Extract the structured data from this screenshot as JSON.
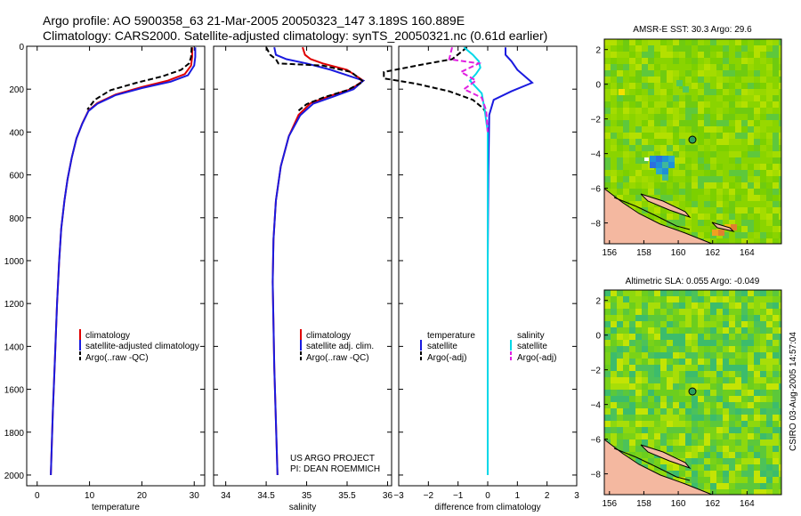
{
  "header": {
    "line1": "Argo profile: AO 5900358_63 21-Mar-2005 20050323_147 3.189S 160.889E",
    "line2": "Climatology: CARS2000. Satellite-adjusted climatology: synTS_20050321.nc (0.61d earlier)"
  },
  "side_label": "CSIRO 03-Aug-2005 14:57:04",
  "project": {
    "line1": "US ARGO PROJECT",
    "line2": "PI: DEAN ROEMMICH"
  },
  "colors": {
    "climatology": "#e00000",
    "satellite": "#1a1adf",
    "argo": "#000000",
    "satellite_sal": "#00d8e8",
    "argo_sal": "#e020e0",
    "map_ocean": "#8ad400",
    "map_land": "#f4b8a0"
  },
  "chart_data": [
    {
      "type": "line",
      "id": "temperature",
      "xlabel": "temperature",
      "ylabel": "",
      "xlim": [
        -2,
        32
      ],
      "ylim": [
        2050,
        0
      ],
      "xticks": [
        0,
        10,
        20,
        30
      ],
      "yticks": [
        0,
        200,
        400,
        600,
        800,
        1000,
        1200,
        1400,
        1600,
        1800,
        2000
      ],
      "series": [
        {
          "name": "climatology",
          "color": "#e00000",
          "dash": false,
          "points": [
            [
              29.6,
              5
            ],
            [
              29.6,
              50
            ],
            [
              29.4,
              90
            ],
            [
              28.2,
              130
            ],
            [
              25,
              160
            ],
            [
              20,
              190
            ],
            [
              15,
              225
            ],
            [
              11.5,
              265
            ],
            [
              9.8,
              300
            ],
            [
              8.6,
              360
            ],
            [
              7.5,
              430
            ],
            [
              6.6,
              520
            ],
            [
              5.8,
              620
            ],
            [
              5.2,
              720
            ],
            [
              4.6,
              850
            ],
            [
              4.2,
              1000
            ],
            [
              3.8,
              1200
            ],
            [
              3.4,
              1450
            ],
            [
              3,
              1700
            ],
            [
              2.6,
              2000
            ]
          ]
        },
        {
          "name": "satellite-adjusted climatology",
          "color": "#1a1adf",
          "dash": false,
          "points": [
            [
              30.2,
              5
            ],
            [
              30.2,
              50
            ],
            [
              30,
              90
            ],
            [
              28.8,
              135
            ],
            [
              25.5,
              165
            ],
            [
              20,
              195
            ],
            [
              15,
              228
            ],
            [
              11.5,
              268
            ],
            [
              9.8,
              302
            ],
            [
              8.6,
              362
            ],
            [
              7.5,
              430
            ],
            [
              6.6,
              520
            ],
            [
              5.8,
              620
            ],
            [
              5.2,
              720
            ],
            [
              4.6,
              850
            ],
            [
              4.2,
              1000
            ],
            [
              3.8,
              1200
            ],
            [
              3.4,
              1450
            ],
            [
              3,
              1700
            ],
            [
              2.6,
              2000
            ]
          ]
        },
        {
          "name": "Argo(..raw -QC)",
          "color": "#000000",
          "dash": true,
          "points": [
            [
              29.5,
              5
            ],
            [
              29.4,
              50
            ],
            [
              29,
              80
            ],
            [
              27.5,
              110
            ],
            [
              24,
              140
            ],
            [
              19,
              170
            ],
            [
              14,
              205
            ],
            [
              11,
              250
            ],
            [
              9.6,
              295
            ]
          ]
        }
      ],
      "legend": [
        "climatology",
        "satellite-adjusted climatology",
        "Argo(..raw -QC)"
      ]
    },
    {
      "type": "line",
      "id": "salinity",
      "xlabel": "salinity",
      "ylabel": "",
      "xlim": [
        33.85,
        36.05
      ],
      "ylim": [
        2050,
        0
      ],
      "xticks": [
        34,
        34.5,
        35,
        35.5,
        36
      ],
      "series": [
        {
          "name": "climatology",
          "color": "#e00000",
          "dash": false,
          "points": [
            [
              34.95,
              5
            ],
            [
              34.98,
              40
            ],
            [
              35.05,
              60
            ],
            [
              35.2,
              80
            ],
            [
              35.5,
              110
            ],
            [
              35.7,
              160
            ],
            [
              35.55,
              200
            ],
            [
              35.3,
              230
            ],
            [
              35.05,
              265
            ],
            [
              34.9,
              320
            ],
            [
              34.78,
              420
            ],
            [
              34.68,
              560
            ],
            [
              34.62,
              720
            ],
            [
              34.59,
              900
            ],
            [
              34.58,
              1100
            ],
            [
              34.59,
              1300
            ],
            [
              34.6,
              1500
            ],
            [
              34.62,
              1750
            ],
            [
              34.64,
              2000
            ]
          ]
        },
        {
          "name": "satellite adj. clim.",
          "color": "#1a1adf",
          "dash": false,
          "points": [
            [
              34.6,
              5
            ],
            [
              34.62,
              40
            ],
            [
              34.75,
              60
            ],
            [
              35,
              80
            ],
            [
              35.3,
              110
            ],
            [
              35.7,
              160
            ],
            [
              35.58,
              200
            ],
            [
              35.35,
              232
            ],
            [
              35.08,
              268
            ],
            [
              34.92,
              322
            ],
            [
              34.78,
              420
            ],
            [
              34.68,
              560
            ],
            [
              34.62,
              720
            ],
            [
              34.59,
              900
            ],
            [
              34.58,
              1100
            ],
            [
              34.59,
              1300
            ],
            [
              34.6,
              1500
            ],
            [
              34.62,
              1750
            ],
            [
              34.64,
              2000
            ]
          ]
        },
        {
          "name": "Argo(..raw -QC)",
          "color": "#000000",
          "dash": true,
          "points": [
            [
              34.5,
              5
            ],
            [
              34.55,
              40
            ],
            [
              34.62,
              60
            ],
            [
              34.65,
              80
            ],
            [
              35.2,
              90
            ],
            [
              35.55,
              120
            ],
            [
              35.7,
              165
            ],
            [
              35.5,
              205
            ],
            [
              35.2,
              240
            ],
            [
              35.0,
              270
            ],
            [
              34.9,
              300
            ]
          ]
        }
      ],
      "legend": [
        "climatology",
        "satellite adj. clim.",
        "Argo(..raw -QC)"
      ]
    },
    {
      "type": "line",
      "id": "difference",
      "xlabel": "difference from climatology",
      "ylabel": "",
      "xlim": [
        -3,
        3
      ],
      "ylim": [
        2050,
        0
      ],
      "xticks": [
        -3,
        -2,
        -1,
        0,
        1,
        2,
        3
      ],
      "series": [
        {
          "name": "temperature satellite",
          "color": "#1a1adf",
          "dash": false,
          "points": [
            [
              0.6,
              5
            ],
            [
              0.6,
              40
            ],
            [
              0.8,
              70
            ],
            [
              1.0,
              110
            ],
            [
              1.5,
              170
            ],
            [
              0.8,
              210
            ],
            [
              0.2,
              250
            ],
            [
              0.05,
              320
            ],
            [
              0.02,
              600
            ],
            [
              0,
              1000
            ],
            [
              0,
              2000
            ]
          ]
        },
        {
          "name": "temperature Argo(-adj)",
          "color": "#000000",
          "dash": true,
          "points": [
            [
              -0.7,
              5
            ],
            [
              -1.2,
              60
            ],
            [
              -2.2,
              85
            ],
            [
              -3.5,
              120
            ],
            [
              -3.5,
              150
            ],
            [
              -2.4,
              175
            ],
            [
              -1.3,
              210
            ],
            [
              -0.5,
              250
            ],
            [
              -0.15,
              290
            ],
            [
              -0.02,
              320
            ]
          ]
        },
        {
          "name": "salinity satellite",
          "color": "#00d8e8",
          "dash": false,
          "points": [
            [
              -0.8,
              5
            ],
            [
              -0.5,
              40
            ],
            [
              -0.3,
              70
            ],
            [
              -0.25,
              100
            ],
            [
              -0.4,
              130
            ],
            [
              -0.6,
              160
            ],
            [
              -0.4,
              190
            ],
            [
              -0.2,
              220
            ],
            [
              -0.15,
              260
            ],
            [
              -0.1,
              300
            ],
            [
              0,
              400
            ],
            [
              0,
              1000
            ],
            [
              0,
              2000
            ]
          ]
        },
        {
          "name": "salinity Argo(-adj)",
          "color": "#e020e0",
          "dash": true,
          "points": [
            [
              -1.2,
              5
            ],
            [
              -1.3,
              60
            ],
            [
              -0.3,
              80
            ],
            [
              -0.9,
              120
            ],
            [
              -0.4,
              160
            ],
            [
              -0.8,
              200
            ],
            [
              -0.2,
              240
            ],
            [
              -0.05,
              300
            ],
            [
              0,
              400
            ]
          ]
        }
      ],
      "legend_temperature": {
        "title": "temperature",
        "items": [
          "satellite",
          "Argo(-adj)"
        ]
      },
      "legend_salinity": {
        "title": "salinity",
        "items": [
          "satellite",
          "Argo(-adj)"
        ]
      }
    },
    {
      "type": "heatmap",
      "id": "sst_map",
      "title": "AMSR-E SST: 30.3 Argo: 29.6",
      "xlim": [
        155.7,
        166
      ],
      "ylim": [
        -9.2,
        2.6
      ],
      "xticks": [
        156,
        158,
        160,
        162,
        164
      ],
      "yticks": [
        2,
        0,
        -2,
        -4,
        -6,
        -8
      ],
      "profile_location": [
        160.889,
        -3.189
      ]
    },
    {
      "type": "heatmap",
      "id": "sla_map",
      "title": "Altimetric SLA: 0.055 Argo: -0.049",
      "xlim": [
        155.7,
        166
      ],
      "ylim": [
        -9.2,
        2.6
      ],
      "xticks": [
        156,
        158,
        160,
        162,
        164
      ],
      "yticks": [
        2,
        0,
        -2,
        -4,
        -6,
        -8
      ],
      "profile_location": [
        160.889,
        -3.189
      ]
    }
  ]
}
